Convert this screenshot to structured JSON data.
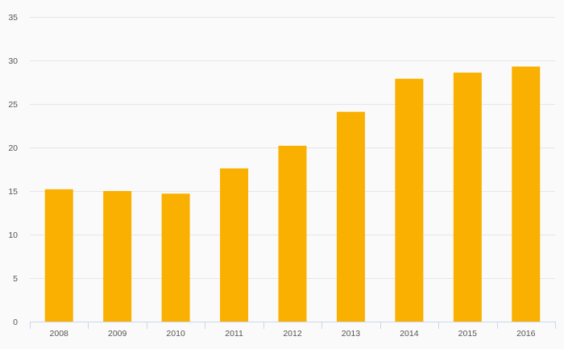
{
  "chart_data": {
    "type": "bar",
    "categories": [
      "2008",
      "2009",
      "2010",
      "2011",
      "2012",
      "2013",
      "2014",
      "2015",
      "2016"
    ],
    "series": [
      {
        "values": [
          15.2,
          15.0,
          14.7,
          17.6,
          20.2,
          24.1,
          27.9,
          28.6,
          29.3
        ]
      }
    ],
    "title": "",
    "xlabel": "",
    "ylabel": "",
    "ylim": [
      0,
      35
    ],
    "yticks": [
      0,
      5,
      10,
      15,
      20,
      25,
      30,
      35
    ],
    "grid": true,
    "legend": "none",
    "colors": {
      "bar": "#f9b000",
      "grid": "#e6e6e6",
      "axis": "#ccd6eb",
      "tick_text": "#555555",
      "background": "#fafafa"
    }
  }
}
